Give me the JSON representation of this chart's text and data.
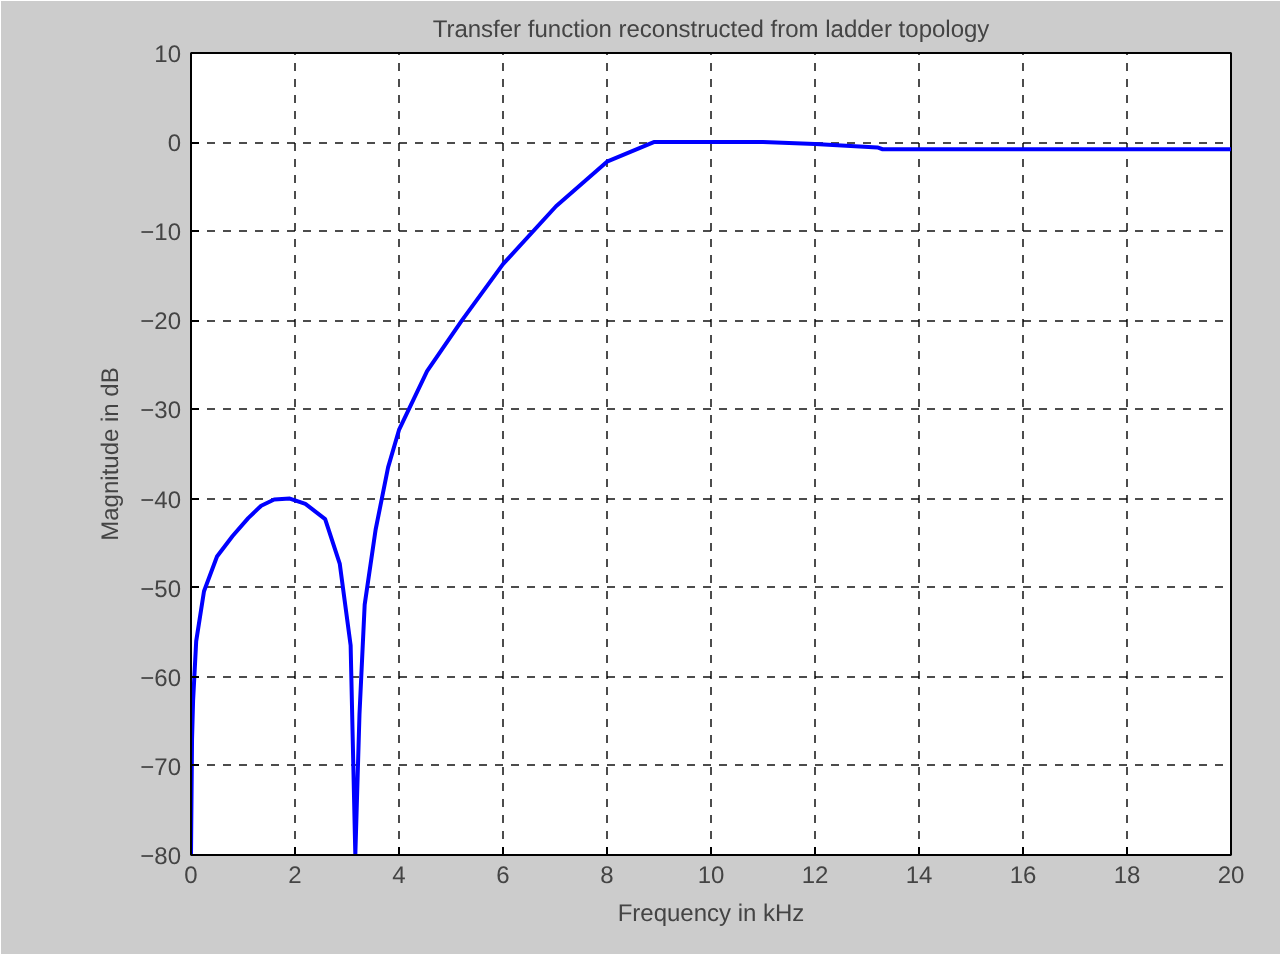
{
  "chart_data": {
    "type": "line",
    "title": "Transfer function reconstructed from ladder topology",
    "xlabel": "Frequency in kHz",
    "ylabel": "Magnitude in dB",
    "xlim": [
      0,
      20
    ],
    "ylim": [
      -80,
      10
    ],
    "xticks": [
      0,
      2,
      4,
      6,
      8,
      10,
      12,
      14,
      16,
      18,
      20
    ],
    "yticks": [
      -80,
      -70,
      -60,
      -50,
      -40,
      -30,
      -20,
      -10,
      0,
      10
    ],
    "grid": true,
    "marker": "none",
    "line_style": "solid",
    "series": [
      {
        "color": "#0000ff",
        "x": [
          0,
          0.02,
          0.04,
          0.1,
          0.25,
          0.5,
          0.8,
          1.1,
          1.35,
          1.6,
          1.9,
          2.2,
          2.58,
          2.86,
          3.07,
          3.16,
          3.24,
          3.34,
          3.55,
          3.79,
          4.0,
          4.54,
          5.21,
          6.0,
          7.02,
          8.0,
          8.9,
          10.0,
          11.0,
          12.0,
          13.2,
          13.3,
          16.0,
          20.0
        ],
        "values": [
          -80,
          -67,
          -62.7,
          -56,
          -50.4,
          -46.5,
          -44.2,
          -42.2,
          -40.8,
          -40.1,
          -40,
          -40.6,
          -42.3,
          -47.3,
          -56.5,
          -80,
          -64.2,
          -51.9,
          -43.5,
          -36.5,
          -32.3,
          -25.7,
          -20,
          -13.7,
          -7.2,
          -2.2,
          0,
          0,
          0,
          -0.2,
          -0.6,
          -0.8,
          -0.8,
          -0.8
        ]
      }
    ]
  }
}
